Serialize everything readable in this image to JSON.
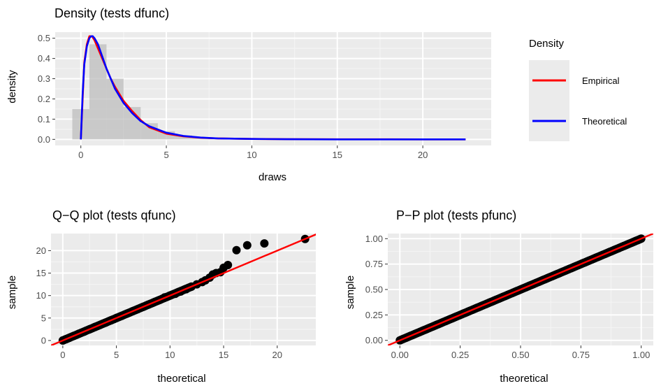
{
  "colors": {
    "panel_bg": "#EBEBEB",
    "grid_major": "#FFFFFF",
    "grid_minor": "#F4F4F4",
    "empirical": "#FF0000",
    "theoretical": "#0000FF",
    "histogram": "#BEBEBE",
    "points": "#000000",
    "reference_line": "#FF0000",
    "tick_text": "#4D4D4D"
  },
  "chart_data": [
    {
      "type": "area",
      "title": "Density (tests dfunc)",
      "xlabel": "draws",
      "ylabel": "density",
      "xlim": [
        -1.5,
        24.0
      ],
      "ylim": [
        -0.03,
        0.53
      ],
      "x_ticks": [
        0,
        5,
        10,
        15,
        20
      ],
      "x_tick_labels": [
        "0",
        "5",
        "10",
        "15",
        "20"
      ],
      "y_ticks": [
        0.0,
        0.1,
        0.2,
        0.3,
        0.4,
        0.5
      ],
      "y_tick_labels": [
        "0.0",
        "0.1",
        "0.2",
        "0.3",
        "0.4",
        "0.5"
      ],
      "grid": true,
      "histogram": {
        "bin_width": 1,
        "centers": [
          0,
          1,
          2,
          3,
          4,
          5,
          6,
          7,
          8,
          9,
          10,
          11,
          12,
          13,
          14,
          15,
          16,
          17,
          18,
          19,
          20,
          21,
          22
        ],
        "values": [
          0.15,
          0.47,
          0.3,
          0.16,
          0.08,
          0.04,
          0.02,
          0.01,
          0.006,
          0.004,
          0.003,
          0.002,
          0.001,
          0.001,
          0.001,
          0.001,
          0.001,
          0.001,
          0.001,
          0.0,
          0.0,
          0.0,
          0.001
        ]
      },
      "series": [
        {
          "name": "Empirical",
          "x": [
            0,
            0.2,
            0.35,
            0.5,
            0.65,
            0.8,
            1.0,
            1.25,
            1.5,
            1.75,
            2.0,
            2.5,
            3.0,
            3.5,
            4.0,
            5.0,
            6.0,
            7.0,
            8.0,
            10.0,
            12.0,
            15.0,
            18.0,
            20.0,
            22.5
          ],
          "y": [
            0.0,
            0.38,
            0.47,
            0.51,
            0.51,
            0.49,
            0.45,
            0.4,
            0.35,
            0.3,
            0.26,
            0.19,
            0.14,
            0.095,
            0.06,
            0.028,
            0.015,
            0.008,
            0.005,
            0.002,
            0.001,
            0.0005,
            0.0003,
            0.0002,
            0.0001
          ]
        },
        {
          "name": "Theoretical",
          "x": [
            0,
            0.1,
            0.2,
            0.35,
            0.5,
            0.6,
            0.7,
            0.8,
            1.0,
            1.25,
            1.5,
            1.75,
            2.0,
            2.5,
            3.0,
            3.5,
            4.0,
            5.0,
            6.0,
            7.0,
            8.0,
            10.0,
            12.0,
            15.0,
            18.0,
            20.0,
            22.5
          ],
          "y": [
            0.0,
            0.22,
            0.37,
            0.46,
            0.5,
            0.51,
            0.51,
            0.5,
            0.47,
            0.41,
            0.35,
            0.3,
            0.25,
            0.18,
            0.13,
            0.09,
            0.065,
            0.033,
            0.017,
            0.009,
            0.005,
            0.002,
            0.0007,
            0.0002,
            0.0001,
            0.0,
            0.0
          ]
        }
      ],
      "legend": {
        "title": "Density",
        "position": "right",
        "entries": [
          "Empirical",
          "Theoretical"
        ]
      }
    },
    {
      "type": "scatter",
      "title": "Q−Q plot (tests qfunc)",
      "xlabel": "theoretical",
      "ylabel": "sample",
      "xlim": [
        -1.1,
        23.6
      ],
      "ylim": [
        -1.1,
        23.8
      ],
      "x_ticks": [
        0,
        5,
        10,
        15,
        20
      ],
      "x_tick_labels": [
        "0",
        "5",
        "10",
        "15",
        "20"
      ],
      "y_ticks": [
        0,
        5,
        10,
        15,
        20
      ],
      "y_tick_labels": [
        "0",
        "5",
        "10",
        "15",
        "20"
      ],
      "grid": true,
      "reference_line": {
        "intercept": 0,
        "slope": 1
      },
      "points": {
        "x": [
          0.0,
          0.3,
          0.6,
          1.0,
          1.5,
          2.0,
          2.5,
          3.0,
          3.5,
          4.0,
          4.5,
          5.0,
          5.5,
          6.0,
          6.5,
          7.0,
          7.5,
          8.0,
          8.5,
          9.0,
          9.5,
          10.0,
          10.5,
          11.0,
          11.5,
          12.0,
          12.5,
          13.0,
          13.3,
          13.7,
          14.0,
          14.3,
          14.7,
          15.0,
          15.4,
          16.2,
          17.2,
          18.8,
          22.6
        ],
        "y": [
          0.0,
          0.3,
          0.6,
          1.0,
          1.5,
          2.0,
          2.5,
          3.0,
          3.5,
          4.0,
          4.5,
          5.0,
          5.5,
          6.0,
          6.5,
          7.0,
          7.5,
          8.0,
          8.5,
          9.0,
          9.6,
          10.0,
          10.4,
          10.9,
          11.4,
          12.0,
          12.5,
          13.0,
          13.4,
          14.0,
          14.7,
          15.0,
          15.2,
          16.2,
          16.8,
          20.1,
          21.2,
          21.6,
          22.6
        ]
      }
    },
    {
      "type": "scatter",
      "title": "P−P plot (tests pfunc)",
      "xlabel": "theoretical",
      "ylabel": "sample",
      "xlim": [
        -0.05,
        1.05
      ],
      "ylim": [
        -0.05,
        1.05
      ],
      "x_ticks": [
        0.0,
        0.25,
        0.5,
        0.75,
        1.0
      ],
      "x_tick_labels": [
        "0.00",
        "0.25",
        "0.50",
        "0.75",
        "1.00"
      ],
      "y_ticks": [
        0.0,
        0.25,
        0.5,
        0.75,
        1.0
      ],
      "y_tick_labels": [
        "0.00",
        "0.25",
        "0.50",
        "0.75",
        "1.00"
      ],
      "grid": true,
      "reference_line": {
        "intercept": 0,
        "slope": 1
      },
      "points": {
        "x_range": [
          0.0,
          1.0
        ],
        "n": 200,
        "on_line": true
      }
    }
  ]
}
